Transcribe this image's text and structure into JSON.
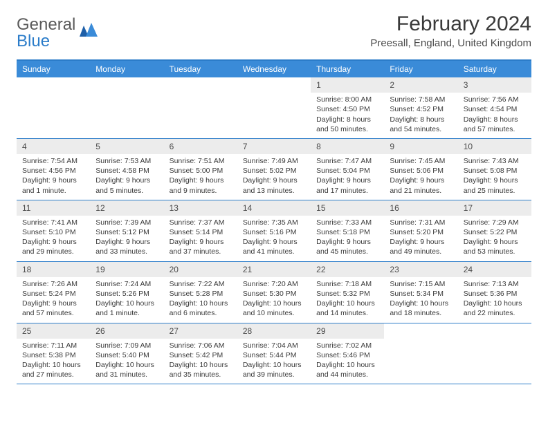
{
  "logo": {
    "text1": "General",
    "text2": "Blue"
  },
  "title": "February 2024",
  "subtitle": "Preesall, England, United Kingdom",
  "colors": {
    "header_bg": "#3a8bd8",
    "border": "#2b7cc9",
    "daynum_bg": "#ececec",
    "text": "#3a3a3a",
    "logo_gray": "#5a5a5a",
    "logo_blue": "#2b7cc9"
  },
  "weekdays": [
    "Sunday",
    "Monday",
    "Tuesday",
    "Wednesday",
    "Thursday",
    "Friday",
    "Saturday"
  ],
  "weeks": [
    [
      {
        "n": "",
        "sr": "",
        "ss": "",
        "dl": ""
      },
      {
        "n": "",
        "sr": "",
        "ss": "",
        "dl": ""
      },
      {
        "n": "",
        "sr": "",
        "ss": "",
        "dl": ""
      },
      {
        "n": "",
        "sr": "",
        "ss": "",
        "dl": ""
      },
      {
        "n": "1",
        "sr": "Sunrise: 8:00 AM",
        "ss": "Sunset: 4:50 PM",
        "dl": "Daylight: 8 hours and 50 minutes."
      },
      {
        "n": "2",
        "sr": "Sunrise: 7:58 AM",
        "ss": "Sunset: 4:52 PM",
        "dl": "Daylight: 8 hours and 54 minutes."
      },
      {
        "n": "3",
        "sr": "Sunrise: 7:56 AM",
        "ss": "Sunset: 4:54 PM",
        "dl": "Daylight: 8 hours and 57 minutes."
      }
    ],
    [
      {
        "n": "4",
        "sr": "Sunrise: 7:54 AM",
        "ss": "Sunset: 4:56 PM",
        "dl": "Daylight: 9 hours and 1 minute."
      },
      {
        "n": "5",
        "sr": "Sunrise: 7:53 AM",
        "ss": "Sunset: 4:58 PM",
        "dl": "Daylight: 9 hours and 5 minutes."
      },
      {
        "n": "6",
        "sr": "Sunrise: 7:51 AM",
        "ss": "Sunset: 5:00 PM",
        "dl": "Daylight: 9 hours and 9 minutes."
      },
      {
        "n": "7",
        "sr": "Sunrise: 7:49 AM",
        "ss": "Sunset: 5:02 PM",
        "dl": "Daylight: 9 hours and 13 minutes."
      },
      {
        "n": "8",
        "sr": "Sunrise: 7:47 AM",
        "ss": "Sunset: 5:04 PM",
        "dl": "Daylight: 9 hours and 17 minutes."
      },
      {
        "n": "9",
        "sr": "Sunrise: 7:45 AM",
        "ss": "Sunset: 5:06 PM",
        "dl": "Daylight: 9 hours and 21 minutes."
      },
      {
        "n": "10",
        "sr": "Sunrise: 7:43 AM",
        "ss": "Sunset: 5:08 PM",
        "dl": "Daylight: 9 hours and 25 minutes."
      }
    ],
    [
      {
        "n": "11",
        "sr": "Sunrise: 7:41 AM",
        "ss": "Sunset: 5:10 PM",
        "dl": "Daylight: 9 hours and 29 minutes."
      },
      {
        "n": "12",
        "sr": "Sunrise: 7:39 AM",
        "ss": "Sunset: 5:12 PM",
        "dl": "Daylight: 9 hours and 33 minutes."
      },
      {
        "n": "13",
        "sr": "Sunrise: 7:37 AM",
        "ss": "Sunset: 5:14 PM",
        "dl": "Daylight: 9 hours and 37 minutes."
      },
      {
        "n": "14",
        "sr": "Sunrise: 7:35 AM",
        "ss": "Sunset: 5:16 PM",
        "dl": "Daylight: 9 hours and 41 minutes."
      },
      {
        "n": "15",
        "sr": "Sunrise: 7:33 AM",
        "ss": "Sunset: 5:18 PM",
        "dl": "Daylight: 9 hours and 45 minutes."
      },
      {
        "n": "16",
        "sr": "Sunrise: 7:31 AM",
        "ss": "Sunset: 5:20 PM",
        "dl": "Daylight: 9 hours and 49 minutes."
      },
      {
        "n": "17",
        "sr": "Sunrise: 7:29 AM",
        "ss": "Sunset: 5:22 PM",
        "dl": "Daylight: 9 hours and 53 minutes."
      }
    ],
    [
      {
        "n": "18",
        "sr": "Sunrise: 7:26 AM",
        "ss": "Sunset: 5:24 PM",
        "dl": "Daylight: 9 hours and 57 minutes."
      },
      {
        "n": "19",
        "sr": "Sunrise: 7:24 AM",
        "ss": "Sunset: 5:26 PM",
        "dl": "Daylight: 10 hours and 1 minute."
      },
      {
        "n": "20",
        "sr": "Sunrise: 7:22 AM",
        "ss": "Sunset: 5:28 PM",
        "dl": "Daylight: 10 hours and 6 minutes."
      },
      {
        "n": "21",
        "sr": "Sunrise: 7:20 AM",
        "ss": "Sunset: 5:30 PM",
        "dl": "Daylight: 10 hours and 10 minutes."
      },
      {
        "n": "22",
        "sr": "Sunrise: 7:18 AM",
        "ss": "Sunset: 5:32 PM",
        "dl": "Daylight: 10 hours and 14 minutes."
      },
      {
        "n": "23",
        "sr": "Sunrise: 7:15 AM",
        "ss": "Sunset: 5:34 PM",
        "dl": "Daylight: 10 hours and 18 minutes."
      },
      {
        "n": "24",
        "sr": "Sunrise: 7:13 AM",
        "ss": "Sunset: 5:36 PM",
        "dl": "Daylight: 10 hours and 22 minutes."
      }
    ],
    [
      {
        "n": "25",
        "sr": "Sunrise: 7:11 AM",
        "ss": "Sunset: 5:38 PM",
        "dl": "Daylight: 10 hours and 27 minutes."
      },
      {
        "n": "26",
        "sr": "Sunrise: 7:09 AM",
        "ss": "Sunset: 5:40 PM",
        "dl": "Daylight: 10 hours and 31 minutes."
      },
      {
        "n": "27",
        "sr": "Sunrise: 7:06 AM",
        "ss": "Sunset: 5:42 PM",
        "dl": "Daylight: 10 hours and 35 minutes."
      },
      {
        "n": "28",
        "sr": "Sunrise: 7:04 AM",
        "ss": "Sunset: 5:44 PM",
        "dl": "Daylight: 10 hours and 39 minutes."
      },
      {
        "n": "29",
        "sr": "Sunrise: 7:02 AM",
        "ss": "Sunset: 5:46 PM",
        "dl": "Daylight: 10 hours and 44 minutes."
      },
      {
        "n": "",
        "sr": "",
        "ss": "",
        "dl": ""
      },
      {
        "n": "",
        "sr": "",
        "ss": "",
        "dl": ""
      }
    ]
  ]
}
